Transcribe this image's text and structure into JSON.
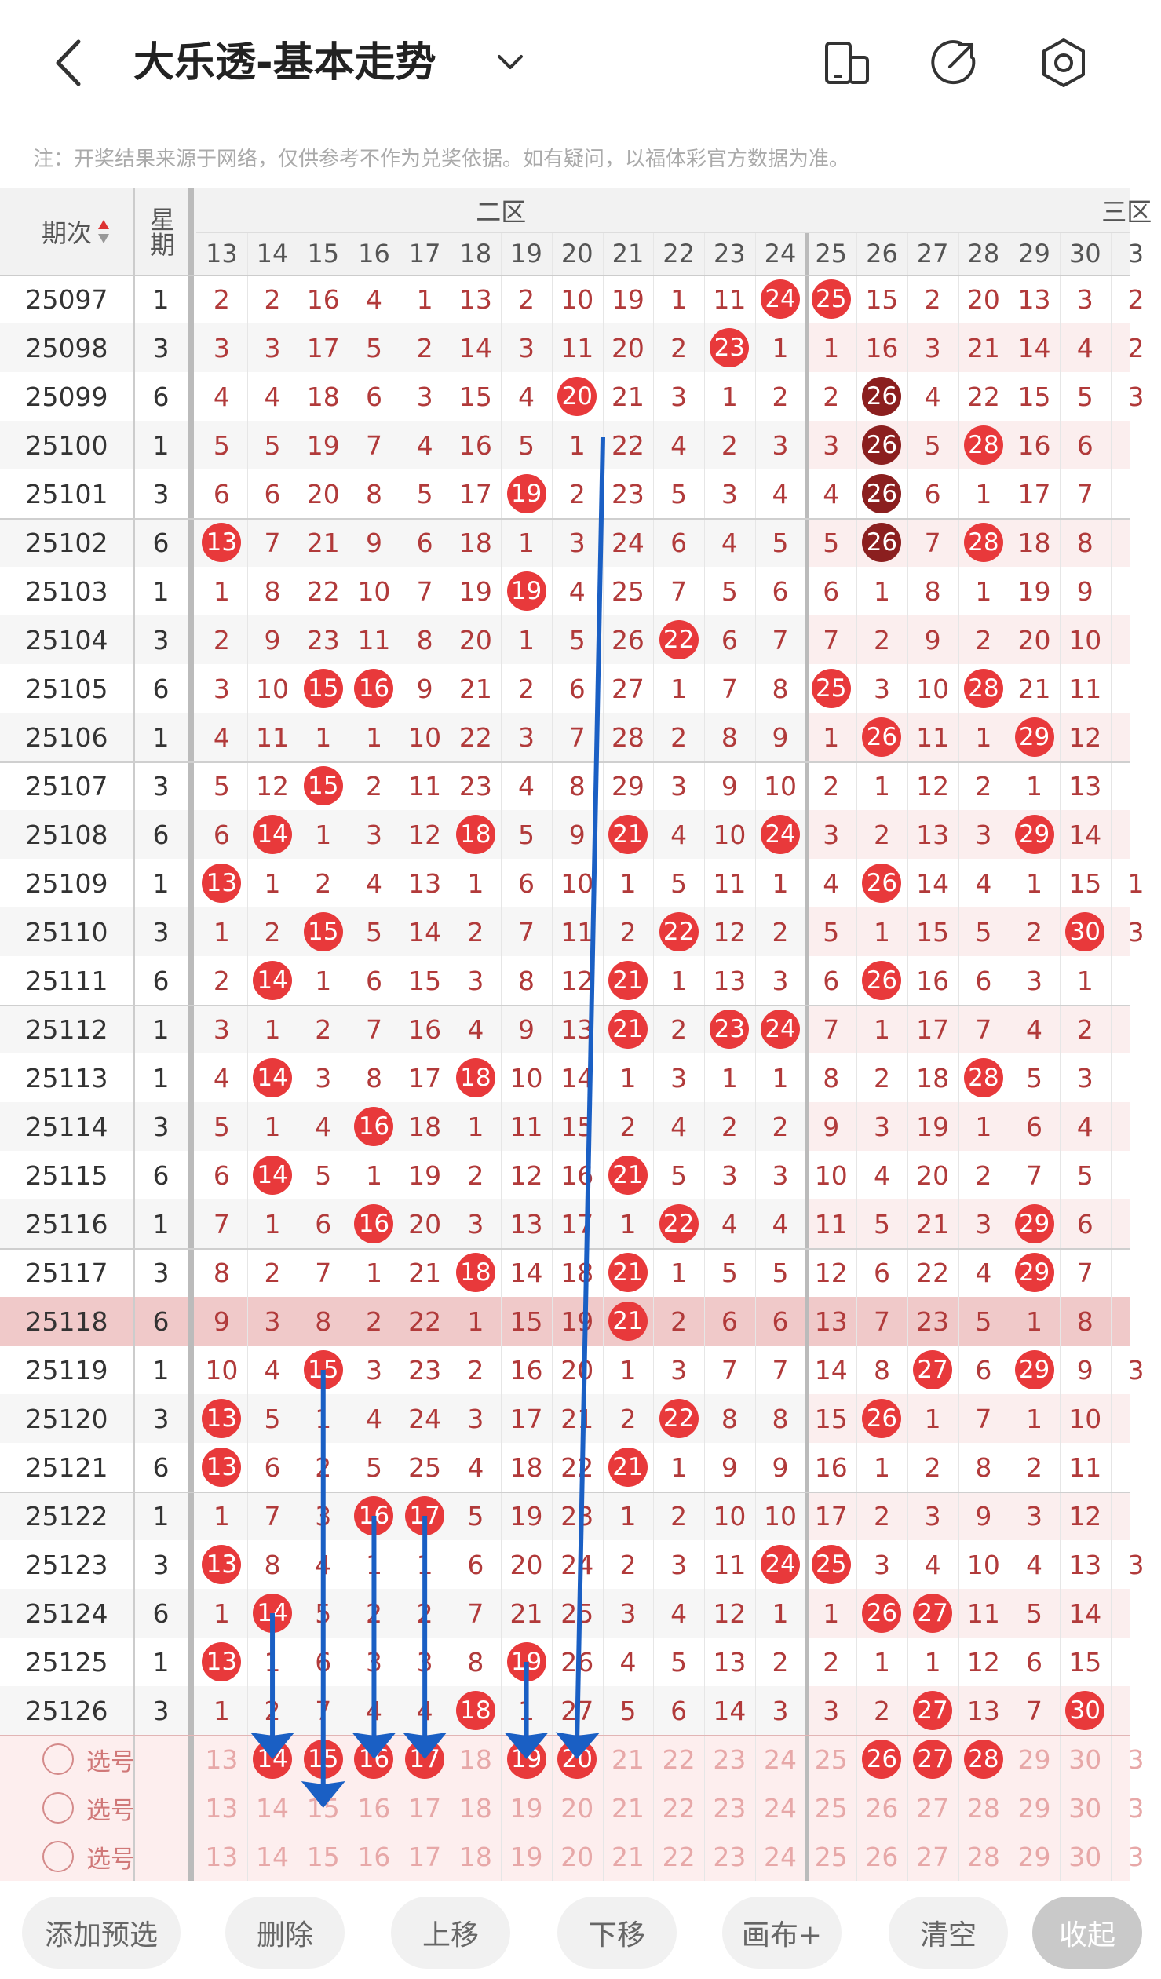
{
  "header": {
    "title": "大乐透-基本走势",
    "back_icon": "chevron-left-icon",
    "dropdown_icon": "chevron-down-icon",
    "icons": [
      "phone-icon",
      "share-icon",
      "settings-icon"
    ]
  },
  "note": "注：开奖结果来源于网络，仅供参考不作为兑奖依据。如有疑问，以福体彩官方数据为准。",
  "table": {
    "col_period": "期次",
    "col_week": "星期",
    "zone2_label": "二区",
    "zone3_label": "三区",
    "number_columns": [
      "13",
      "14",
      "15",
      "16",
      "17",
      "18",
      "19",
      "20",
      "21",
      "22",
      "23",
      "24",
      "25",
      "26",
      "27",
      "28",
      "29",
      "30",
      "3"
    ],
    "rows": [
      {
        "period": "25097",
        "week": "1",
        "cells": [
          "2",
          "2",
          "16",
          "4",
          "1",
          "13",
          "2",
          "10",
          "19",
          "1",
          "11",
          "24",
          "25",
          "15",
          "2",
          "20",
          "13",
          "3",
          "2"
        ]
      },
      {
        "period": "25098",
        "week": "3",
        "cells": [
          "3",
          "3",
          "17",
          "5",
          "2",
          "14",
          "3",
          "11",
          "20",
          "2",
          "23",
          "1",
          "1",
          "16",
          "3",
          "21",
          "14",
          "4",
          "2"
        ]
      },
      {
        "period": "25099",
        "week": "6",
        "cells": [
          "4",
          "4",
          "18",
          "6",
          "3",
          "15",
          "4",
          "20",
          "21",
          "3",
          "1",
          "2",
          "2",
          "26",
          "4",
          "22",
          "15",
          "5",
          "3"
        ]
      },
      {
        "period": "25100",
        "week": "1",
        "cells": [
          "5",
          "5",
          "19",
          "7",
          "4",
          "16",
          "5",
          "1",
          "22",
          "4",
          "2",
          "3",
          "3",
          "26",
          "5",
          "28",
          "16",
          "6",
          ""
        ]
      },
      {
        "period": "25101",
        "week": "3",
        "cells": [
          "6",
          "6",
          "20",
          "8",
          "5",
          "17",
          "19",
          "2",
          "23",
          "5",
          "3",
          "4",
          "4",
          "26",
          "6",
          "1",
          "17",
          "7",
          ""
        ]
      },
      {
        "period": "25102",
        "week": "6",
        "cells": [
          "13",
          "7",
          "21",
          "9",
          "6",
          "18",
          "1",
          "3",
          "24",
          "6",
          "4",
          "5",
          "5",
          "26",
          "7",
          "28",
          "18",
          "8",
          ""
        ]
      },
      {
        "period": "25103",
        "week": "1",
        "cells": [
          "1",
          "8",
          "22",
          "10",
          "7",
          "19",
          "19",
          "4",
          "25",
          "7",
          "5",
          "6",
          "6",
          "1",
          "8",
          "1",
          "19",
          "9",
          ""
        ]
      },
      {
        "period": "25104",
        "week": "3",
        "cells": [
          "2",
          "9",
          "23",
          "11",
          "8",
          "20",
          "1",
          "5",
          "26",
          "22",
          "6",
          "7",
          "7",
          "2",
          "9",
          "2",
          "20",
          "10",
          ""
        ]
      },
      {
        "period": "25105",
        "week": "6",
        "cells": [
          "3",
          "10",
          "15",
          "16",
          "9",
          "21",
          "2",
          "6",
          "27",
          "1",
          "7",
          "8",
          "25",
          "3",
          "10",
          "28",
          "21",
          "11",
          ""
        ]
      },
      {
        "period": "25106",
        "week": "1",
        "cells": [
          "4",
          "11",
          "1",
          "1",
          "10",
          "22",
          "3",
          "7",
          "28",
          "2",
          "8",
          "9",
          "1",
          "26",
          "11",
          "1",
          "29",
          "12",
          ""
        ]
      },
      {
        "period": "25107",
        "week": "3",
        "cells": [
          "5",
          "12",
          "15",
          "2",
          "11",
          "23",
          "4",
          "8",
          "29",
          "3",
          "9",
          "10",
          "2",
          "1",
          "12",
          "2",
          "1",
          "13",
          ""
        ]
      },
      {
        "period": "25108",
        "week": "6",
        "cells": [
          "6",
          "14",
          "1",
          "3",
          "12",
          "18",
          "5",
          "9",
          "21",
          "4",
          "10",
          "24",
          "3",
          "2",
          "13",
          "3",
          "29",
          "14",
          ""
        ]
      },
      {
        "period": "25109",
        "week": "1",
        "cells": [
          "13",
          "1",
          "2",
          "4",
          "13",
          "1",
          "6",
          "10",
          "1",
          "5",
          "11",
          "1",
          "4",
          "26",
          "14",
          "4",
          "1",
          "15",
          "1"
        ]
      },
      {
        "period": "25110",
        "week": "3",
        "cells": [
          "1",
          "2",
          "15",
          "5",
          "14",
          "2",
          "7",
          "11",
          "2",
          "22",
          "12",
          "2",
          "5",
          "1",
          "15",
          "5",
          "2",
          "30",
          "3"
        ]
      },
      {
        "period": "25111",
        "week": "6",
        "cells": [
          "2",
          "14",
          "1",
          "6",
          "15",
          "3",
          "8",
          "12",
          "21",
          "1",
          "13",
          "3",
          "6",
          "26",
          "16",
          "6",
          "3",
          "1",
          ""
        ]
      },
      {
        "period": "25112",
        "week": "1",
        "cells": [
          "3",
          "1",
          "2",
          "7",
          "16",
          "4",
          "9",
          "13",
          "21",
          "2",
          "23",
          "24",
          "7",
          "1",
          "17",
          "7",
          "4",
          "2",
          ""
        ]
      },
      {
        "period": "25113",
        "week": "1",
        "cells": [
          "4",
          "14",
          "3",
          "8",
          "17",
          "18",
          "10",
          "14",
          "1",
          "3",
          "1",
          "1",
          "8",
          "2",
          "18",
          "28",
          "5",
          "3",
          ""
        ]
      },
      {
        "period": "25114",
        "week": "3",
        "cells": [
          "5",
          "1",
          "4",
          "16",
          "18",
          "1",
          "11",
          "15",
          "2",
          "4",
          "2",
          "2",
          "9",
          "3",
          "19",
          "1",
          "6",
          "4",
          ""
        ]
      },
      {
        "period": "25115",
        "week": "6",
        "cells": [
          "6",
          "14",
          "5",
          "1",
          "19",
          "2",
          "12",
          "16",
          "21",
          "5",
          "3",
          "3",
          "10",
          "4",
          "20",
          "2",
          "7",
          "5",
          ""
        ]
      },
      {
        "period": "25116",
        "week": "1",
        "cells": [
          "7",
          "1",
          "6",
          "16",
          "20",
          "3",
          "13",
          "17",
          "1",
          "22",
          "4",
          "4",
          "11",
          "5",
          "21",
          "3",
          "29",
          "6",
          ""
        ]
      },
      {
        "period": "25117",
        "week": "3",
        "cells": [
          "8",
          "2",
          "7",
          "1",
          "21",
          "18",
          "14",
          "18",
          "21",
          "1",
          "5",
          "5",
          "12",
          "6",
          "22",
          "4",
          "29",
          "7",
          ""
        ]
      },
      {
        "period": "25118",
        "week": "6",
        "cells": [
          "9",
          "3",
          "8",
          "2",
          "22",
          "1",
          "15",
          "19",
          "21",
          "2",
          "6",
          "6",
          "13",
          "7",
          "23",
          "5",
          "1",
          "8",
          ""
        ]
      },
      {
        "period": "25119",
        "week": "1",
        "cells": [
          "10",
          "4",
          "15",
          "3",
          "23",
          "2",
          "16",
          "20",
          "1",
          "3",
          "7",
          "7",
          "14",
          "8",
          "27",
          "6",
          "29",
          "9",
          "3"
        ]
      },
      {
        "period": "25120",
        "week": "3",
        "cells": [
          "13",
          "5",
          "1",
          "4",
          "24",
          "3",
          "17",
          "21",
          "2",
          "22",
          "8",
          "8",
          "15",
          "26",
          "1",
          "7",
          "1",
          "10",
          ""
        ]
      },
      {
        "period": "25121",
        "week": "6",
        "cells": [
          "13",
          "6",
          "2",
          "5",
          "25",
          "4",
          "18",
          "22",
          "21",
          "1",
          "9",
          "9",
          "16",
          "1",
          "2",
          "8",
          "2",
          "11",
          ""
        ]
      },
      {
        "period": "25122",
        "week": "1",
        "cells": [
          "1",
          "7",
          "3",
          "16",
          "17",
          "5",
          "19",
          "23",
          "1",
          "2",
          "10",
          "10",
          "17",
          "2",
          "3",
          "9",
          "3",
          "12",
          ""
        ]
      },
      {
        "period": "25123",
        "week": "3",
        "cells": [
          "13",
          "8",
          "4",
          "1",
          "1",
          "6",
          "20",
          "24",
          "2",
          "3",
          "11",
          "24",
          "25",
          "3",
          "4",
          "10",
          "4",
          "13",
          "3"
        ]
      },
      {
        "period": "25124",
        "week": "6",
        "cells": [
          "1",
          "14",
          "5",
          "2",
          "2",
          "7",
          "21",
          "25",
          "3",
          "4",
          "12",
          "1",
          "1",
          "26",
          "27",
          "11",
          "5",
          "14",
          ""
        ]
      },
      {
        "period": "25125",
        "week": "1",
        "cells": [
          "13",
          "1",
          "6",
          "3",
          "3",
          "8",
          "19",
          "26",
          "4",
          "5",
          "13",
          "2",
          "2",
          "1",
          "1",
          "12",
          "6",
          "15",
          ""
        ]
      },
      {
        "period": "25126",
        "week": "3",
        "cells": [
          "1",
          "2",
          "7",
          "4",
          "4",
          "18",
          "1",
          "27",
          "5",
          "6",
          "14",
          "3",
          "3",
          "2",
          "27",
          "13",
          "7",
          "30",
          ""
        ]
      }
    ],
    "ball_cells": {
      "25097": [
        "24",
        "25"
      ],
      "25098": [
        "23"
      ],
      "25099": [
        "20",
        "26"
      ],
      "25100": [
        "26",
        "28"
      ],
      "25101": [
        "19",
        "26"
      ],
      "25102": [
        "13",
        "26",
        "28"
      ],
      "25103": [
        "19"
      ],
      "25104": [
        "22"
      ],
      "25105": [
        "15",
        "16",
        "25",
        "28"
      ],
      "25106": [
        "26",
        "29"
      ],
      "25107": [
        "15"
      ],
      "25108": [
        "14",
        "18",
        "21",
        "24",
        "29"
      ],
      "25109": [
        "13",
        "26"
      ],
      "25110": [
        "15",
        "22",
        "30"
      ],
      "25111": [
        "14",
        "21",
        "26"
      ],
      "25112": [
        "21",
        "23",
        "24"
      ],
      "25113": [
        "14",
        "18",
        "28"
      ],
      "25114": [
        "16"
      ],
      "25115": [
        "14",
        "21"
      ],
      "25116": [
        "16",
        "22",
        "29"
      ],
      "25117": [
        "18",
        "21",
        "29"
      ],
      "25118": [
        "21"
      ],
      "25119": [
        "15",
        "27",
        "29"
      ],
      "25120": [
        "13",
        "22",
        "26"
      ],
      "25121": [
        "13",
        "21"
      ],
      "25122": [
        "16",
        "17"
      ],
      "25123": [
        "13",
        "24",
        "25"
      ],
      "25124": [
        "14",
        "26",
        "27"
      ],
      "25125": [
        "13",
        "19"
      ],
      "25126": [
        "18",
        "27",
        "30"
      ]
    },
    "selection_rows": [
      {
        "label": "选号",
        "selected": [
          "14",
          "15",
          "16",
          "17",
          "19",
          "20",
          "26",
          "27",
          "28"
        ]
      },
      {
        "label": "选号",
        "selected": []
      },
      {
        "label": "选号",
        "selected": []
      }
    ],
    "highlight_period": "25118"
  },
  "toolbar": {
    "add": "添加预选",
    "delete": "删除",
    "up": "上移",
    "down": "下移",
    "canvas": "画布+",
    "clear": "清空",
    "collapse": "收起"
  },
  "colors": {
    "ball_red": "#e8393b",
    "ball_dark": "#8b1f1f",
    "number_text": "#b13a3a",
    "arrow_blue": "#1a5fc4"
  }
}
